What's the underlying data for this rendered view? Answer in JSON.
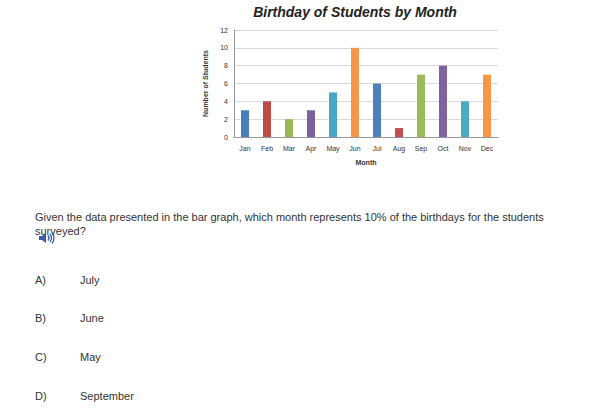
{
  "chart_data": {
    "type": "bar",
    "title": "Birthday of Students by Month",
    "x_label": "Month",
    "y_label": "Number of Students",
    "categories": [
      "Jan",
      "Feb",
      "Mar",
      "Apr",
      "May",
      "Jun",
      "Jul",
      "Aug",
      "Sep",
      "Oct",
      "Nov",
      "Dec"
    ],
    "values": [
      3,
      4,
      2,
      3,
      5,
      10,
      6,
      1,
      7,
      8,
      4,
      7
    ],
    "colors": [
      "#4a7ebb",
      "#be4b48",
      "#98b954",
      "#7d60a0",
      "#46aac5",
      "#f79646",
      "#4f81bd",
      "#c0504d",
      "#9bbb59",
      "#8064a2",
      "#4bacc6",
      "#f79646"
    ],
    "ylim": [
      0,
      12
    ],
    "yticks": [
      0,
      2,
      4,
      6,
      8,
      10,
      12
    ],
    "grid": true
  },
  "question": "Given the data presented in the bar graph, which month represents 10% of the birthdays for the students surveyed?",
  "options": [
    {
      "letter": "A)",
      "text": "July"
    },
    {
      "letter": "B)",
      "text": "June"
    },
    {
      "letter": "C)",
      "text": "May"
    },
    {
      "letter": "D)",
      "text": "September"
    }
  ]
}
